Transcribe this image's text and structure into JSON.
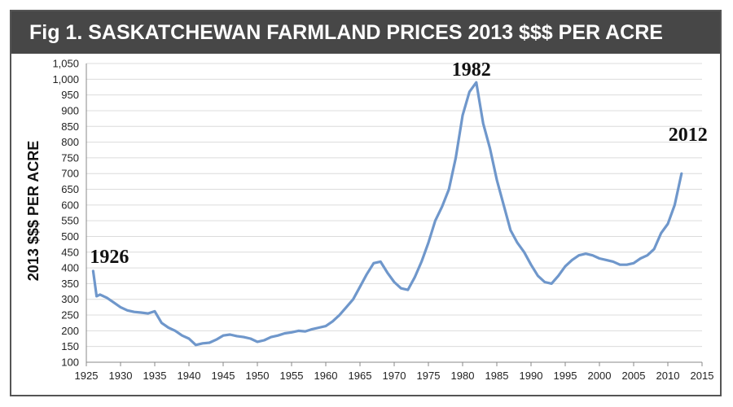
{
  "chart_data": {
    "type": "line",
    "title": "Fig 1.  SASKATCHEWAN FARMLAND PRICES 2013 $$$ PER ACRE",
    "xlabel": "",
    "ylabel": "2013 $$$ PER ACRE",
    "xlim": [
      1925,
      2015
    ],
    "ylim": [
      100,
      1050
    ],
    "xticks": [
      1925,
      1930,
      1935,
      1940,
      1945,
      1950,
      1955,
      1960,
      1965,
      1970,
      1975,
      1980,
      1985,
      1990,
      1995,
      2000,
      2005,
      2010,
      2015
    ],
    "yticks": [
      100,
      150,
      200,
      250,
      300,
      350,
      400,
      450,
      500,
      550,
      600,
      650,
      700,
      750,
      800,
      850,
      900,
      950,
      1000,
      1050
    ],
    "ytick_labels": [
      "100",
      "150",
      "200",
      "250",
      "300",
      "350",
      "400",
      "450",
      "500",
      "550",
      "600",
      "650",
      "700",
      "750",
      "800",
      "850",
      "900",
      "950",
      "1,000",
      "1,050"
    ],
    "grid": "horizontal",
    "line_color": "#6f97cb",
    "series": [
      {
        "x": [
          1926,
          1926.5,
          1927,
          1928,
          1929,
          1930,
          1931,
          1932,
          1933,
          1934,
          1935,
          1936,
          1937,
          1938,
          1939,
          1940,
          1941,
          1942,
          1943,
          1944,
          1945,
          1946,
          1947,
          1948,
          1949,
          1950,
          1951,
          1952,
          1953,
          1954,
          1955,
          1956,
          1957,
          1958,
          1959,
          1960,
          1961,
          1962,
          1963,
          1964,
          1965,
          1966,
          1967,
          1968,
          1969,
          1970,
          1971,
          1972,
          1973,
          1974,
          1975,
          1976,
          1977,
          1978,
          1979,
          1980,
          1981,
          1982,
          1983,
          1984,
          1985,
          1986,
          1987,
          1988,
          1989,
          1990,
          1991,
          1992,
          1993,
          1994,
          1995,
          1996,
          1997,
          1998,
          1999,
          2000,
          2001,
          2002,
          2003,
          2004,
          2005,
          2006,
          2007,
          2008,
          2009,
          2010,
          2011,
          2012
        ],
        "y": [
          390,
          310,
          315,
          305,
          290,
          275,
          265,
          260,
          258,
          255,
          262,
          225,
          210,
          200,
          185,
          175,
          155,
          160,
          162,
          172,
          185,
          188,
          183,
          180,
          175,
          165,
          170,
          180,
          185,
          192,
          195,
          200,
          198,
          205,
          210,
          215,
          230,
          250,
          275,
          300,
          340,
          380,
          415,
          420,
          385,
          355,
          335,
          330,
          370,
          420,
          480,
          550,
          595,
          650,
          750,
          885,
          960,
          990,
          860,
          780,
          680,
          600,
          520,
          480,
          450,
          410,
          375,
          355,
          350,
          375,
          405,
          425,
          440,
          445,
          440,
          430,
          425,
          420,
          410,
          410,
          415,
          430,
          440,
          460,
          510,
          540,
          600,
          700
        ]
      }
    ],
    "annotations": [
      {
        "text": "1926",
        "x": 1926,
        "y": 390
      },
      {
        "text": "1982",
        "x": 1982,
        "y": 990
      },
      {
        "text": "2012",
        "x": 2012,
        "y": 700
      }
    ]
  }
}
